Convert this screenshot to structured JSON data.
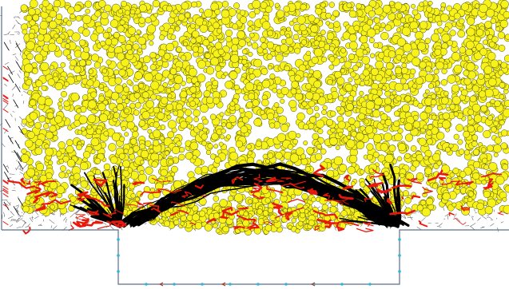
{
  "colors": {
    "background": "#ffffff",
    "particle_fill": "#f7f21a",
    "particle_stroke": "#3a3a00",
    "strong_force_chain": "#000000",
    "tensile_force_chain": "#e8180c",
    "contact_mesh": "#6a6a6a",
    "wall": "#5b6f88",
    "velocity_marker": "#35b3e0",
    "load_arrow": "#b0341c"
  },
  "layers": {
    "particles": "yellow-ball-assembly",
    "compressive_chains": "black-contact-force-chains",
    "tensile_chains": "red-contact-force-chains",
    "voronoi_mesh": "gray-contact-network",
    "walls": "trapdoor-boundary",
    "markers": "cyan-velocity-markers"
  }
}
